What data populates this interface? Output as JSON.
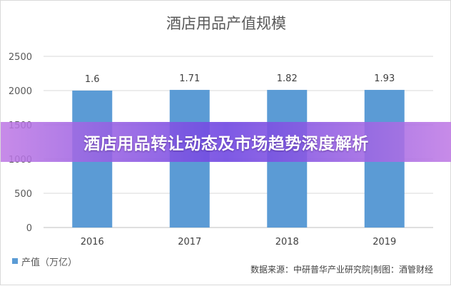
{
  "chart_data": {
    "type": "bar",
    "title": "酒店用品产值规模",
    "categories": [
      "2016",
      "2017",
      "2018",
      "2019"
    ],
    "series": [
      {
        "name": "产值（万亿）",
        "values": [
          1.6,
          1.71,
          1.82,
          1.93
        ],
        "data_labels": [
          "1.6",
          "1.71",
          "1.82",
          "1.93"
        ],
        "color": "#5b9bd5"
      }
    ],
    "bar_heights": [
      2000,
      2010,
      2010,
      2010
    ],
    "yticks": [
      "0",
      "500",
      "1000",
      "1500",
      "2000",
      "2500"
    ],
    "ylim": [
      0,
      2500
    ],
    "grid": true,
    "legend": "bottom-left"
  },
  "banner": {
    "text": "酒店用品转让动态及市场趋势深度解析"
  },
  "source": {
    "text": "数据来源：中研普华产业研究院|制图：酒管财经"
  }
}
